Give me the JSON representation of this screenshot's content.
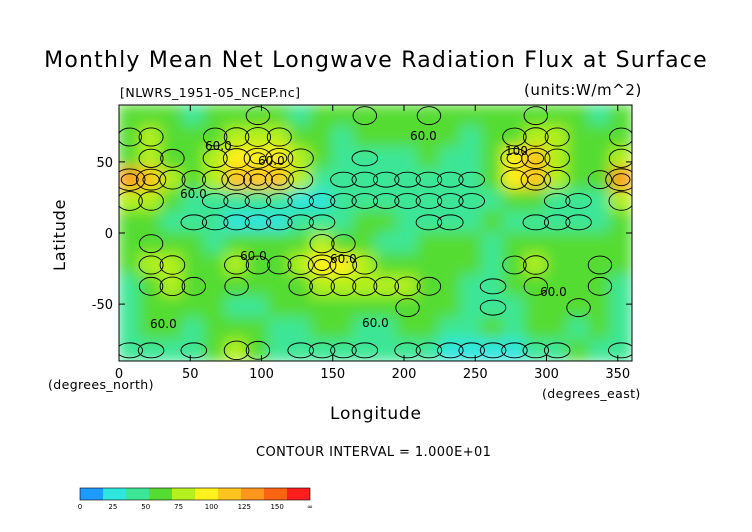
{
  "chart_data": {
    "type": "heatmap",
    "title": "Monthly Mean Net Longwave Radiation Flux at Surface",
    "file": "[NLWRS_1951-05_NCEP.nc]",
    "units": "(units:W/m^2)",
    "xlabel": "Longitude",
    "ylabel": "Latitude",
    "xunit": "(degrees_east)",
    "yunit": "(degrees_north)",
    "xlim": [
      0,
      360
    ],
    "ylim": [
      -90,
      90
    ],
    "xticks": [
      0,
      50,
      100,
      150,
      200,
      250,
      300,
      350
    ],
    "yticks": [
      -50,
      0,
      50
    ],
    "contour_interval": "CONTOUR INTERVAL = 1.000E+01",
    "contour_labels": [
      "60.0",
      "60.0",
      "60.0",
      "100",
      "60.0",
      "60.0",
      "60.0",
      "60.0",
      "60.0",
      "60.0"
    ],
    "colorbar": {
      "ticks": [
        "0",
        "25",
        "50",
        "75",
        "100",
        "125",
        "150",
        "∞"
      ],
      "colors": [
        "#1e9bff",
        "#2ee6dc",
        "#3ce696",
        "#55dc32",
        "#b4f01e",
        "#fff01e",
        "#ffc41e",
        "#ff961e",
        "#ff6414",
        "#ff1e1e"
      ]
    },
    "field": [
      [
        50,
        55,
        50,
        45,
        50,
        55,
        60,
        50,
        45,
        50,
        55,
        60,
        55,
        50,
        60,
        55,
        50,
        50,
        55,
        60,
        55,
        50,
        45,
        50
      ],
      [
        60,
        65,
        55,
        50,
        60,
        70,
        75,
        65,
        55,
        50,
        45,
        50,
        55,
        50,
        55,
        50,
        45,
        50,
        60,
        70,
        65,
        55,
        50,
        60
      ],
      [
        55,
        65,
        60,
        55,
        65,
        85,
        95,
        90,
        75,
        55,
        45,
        40,
        45,
        45,
        50,
        45,
        45,
        55,
        90,
        100,
        70,
        55,
        55,
        65
      ],
      [
        120,
        110,
        75,
        60,
        75,
        110,
        105,
        100,
        65,
        45,
        40,
        35,
        35,
        40,
        40,
        40,
        40,
        50,
        85,
        110,
        75,
        55,
        60,
        125
      ],
      [
        75,
        70,
        55,
        45,
        40,
        40,
        40,
        35,
        30,
        30,
        35,
        35,
        40,
        40,
        40,
        40,
        40,
        45,
        55,
        50,
        40,
        40,
        45,
        70
      ],
      [
        55,
        50,
        45,
        40,
        35,
        30,
        30,
        30,
        35,
        40,
        45,
        50,
        50,
        45,
        40,
        40,
        45,
        50,
        45,
        40,
        35,
        40,
        45,
        50
      ],
      [
        55,
        60,
        55,
        50,
        45,
        50,
        55,
        50,
        55,
        65,
        60,
        50,
        45,
        45,
        50,
        55,
        50,
        45,
        50,
        55,
        50,
        50,
        55,
        55
      ],
      [
        50,
        65,
        70,
        55,
        55,
        65,
        60,
        60,
        75,
        95,
        85,
        65,
        55,
        55,
        50,
        50,
        50,
        45,
        60,
        70,
        55,
        55,
        60,
        50
      ],
      [
        45,
        60,
        70,
        60,
        55,
        60,
        55,
        55,
        60,
        70,
        70,
        65,
        70,
        75,
        60,
        50,
        45,
        40,
        55,
        60,
        50,
        55,
        60,
        45
      ],
      [
        45,
        50,
        55,
        55,
        50,
        45,
        45,
        50,
        50,
        55,
        50,
        50,
        55,
        60,
        55,
        50,
        45,
        40,
        45,
        50,
        55,
        60,
        55,
        45
      ],
      [
        45,
        50,
        50,
        45,
        50,
        55,
        50,
        45,
        45,
        50,
        50,
        45,
        45,
        50,
        50,
        45,
        45,
        50,
        45,
        50,
        50,
        45,
        50,
        45
      ],
      [
        40,
        35,
        45,
        40,
        55,
        70,
        60,
        45,
        35,
        40,
        35,
        40,
        45,
        40,
        35,
        30,
        25,
        20,
        30,
        35,
        40,
        50,
        45,
        40
      ]
    ]
  }
}
